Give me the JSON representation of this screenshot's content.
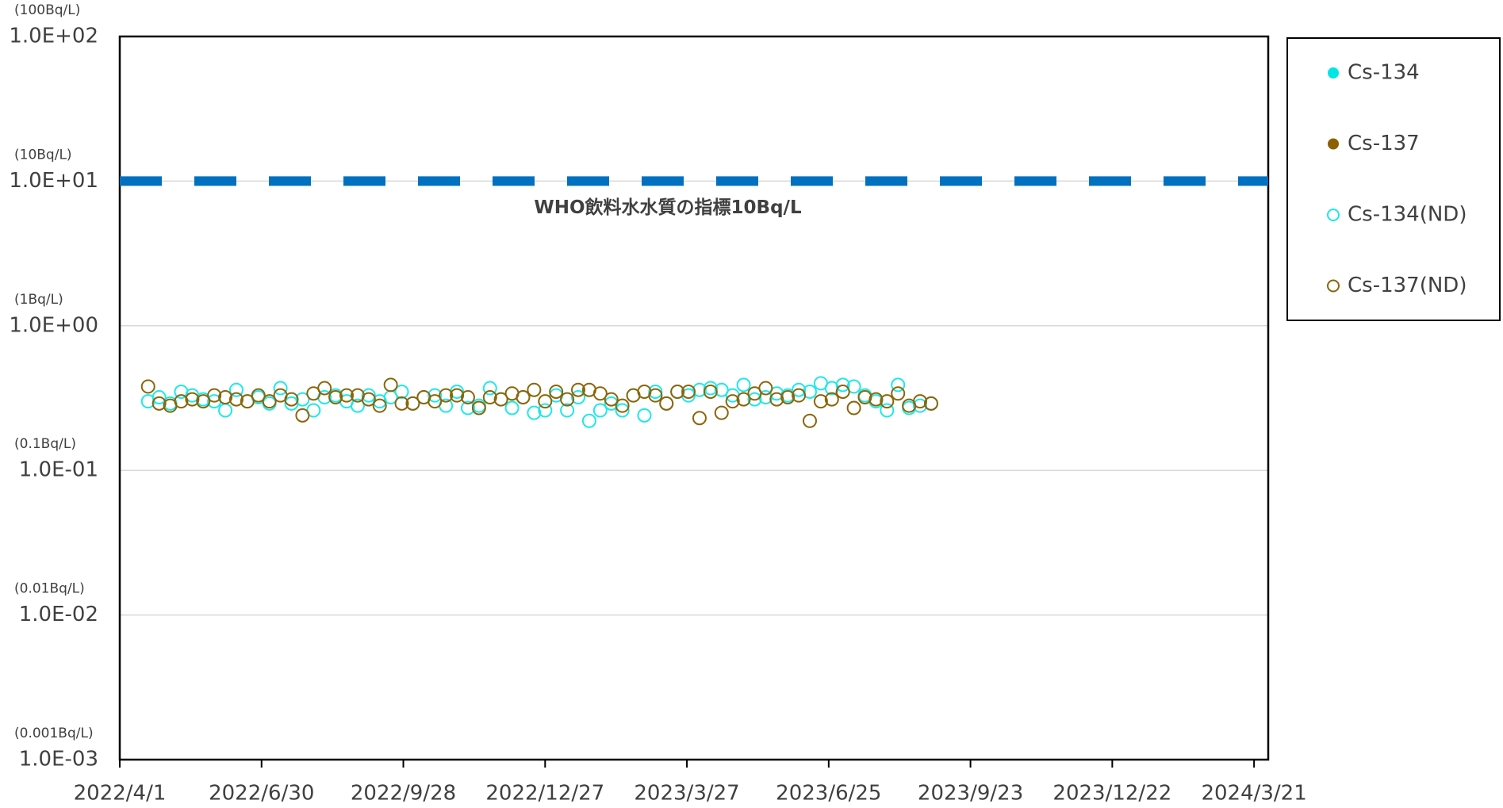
{
  "chart_data": {
    "type": "scatter",
    "log_y": true,
    "grid": true,
    "legend": "right",
    "xlim": [
      "2022/4/1",
      "2024/3/30"
    ],
    "xticks": [
      "2022/4/1",
      "2022/6/30",
      "2022/9/28",
      "2022/12/27",
      "2023/3/27",
      "2023/6/25",
      "2023/9/23",
      "2023/12/22",
      "2024/3/21"
    ],
    "ylim": [
      0.001,
      100
    ],
    "yticks": [
      {
        "value": 0.001,
        "label": "1.0E-03"
      },
      {
        "value": 0.01,
        "label": "1.0E-02"
      },
      {
        "value": 0.1,
        "label": "1.0E-01"
      },
      {
        "value": 1,
        "label": "1.0E+00"
      },
      {
        "value": 10,
        "label": "1.0E+01"
      },
      {
        "value": 100,
        "label": "1.0E+02"
      }
    ],
    "ytick_units": [
      "(0.001Bq/L)",
      "(0.01Bq/L)",
      "(0.1Bq/L)",
      "(1Bq/L)",
      "(10Bq/L)",
      "(100Bq/L)"
    ],
    "reference_line": {
      "value": 10,
      "label": "WHO飲料水水質の指標10Bq/L",
      "color": "#0070c0"
    },
    "x": [
      "2022/4/19",
      "2022/4/26",
      "2022/5/3",
      "2022/5/10",
      "2022/5/17",
      "2022/5/24",
      "2022/5/31",
      "2022/6/7",
      "2022/6/14",
      "2022/6/21",
      "2022/6/28",
      "2022/7/5",
      "2022/7/12",
      "2022/7/19",
      "2022/7/26",
      "2022/8/2",
      "2022/8/9",
      "2022/8/16",
      "2022/8/23",
      "2022/8/30",
      "2022/9/6",
      "2022/9/13",
      "2022/9/20",
      "2022/9/27",
      "2022/10/4",
      "2022/10/11",
      "2022/10/18",
      "2022/10/25",
      "2022/11/1",
      "2022/11/8",
      "2022/11/15",
      "2022/11/22",
      "2022/11/29",
      "2022/12/6",
      "2022/12/13",
      "2022/12/20",
      "2022/12/27",
      "2023/1/3",
      "2023/1/10",
      "2023/1/17",
      "2023/1/24",
      "2023/1/31",
      "2023/2/7",
      "2023/2/14",
      "2023/2/21",
      "2023/2/28",
      "2023/3/7",
      "2023/3/14",
      "2023/3/21",
      "2023/3/28",
      "2023/4/4",
      "2023/4/11",
      "2023/4/18",
      "2023/4/25",
      "2023/5/2",
      "2023/5/9",
      "2023/5/16",
      "2023/5/23",
      "2023/5/30",
      "2023/6/6",
      "2023/6/13",
      "2023/6/20",
      "2023/6/27",
      "2023/7/4",
      "2023/7/11",
      "2023/7/18",
      "2023/7/25",
      "2023/8/1",
      "2023/8/8",
      "2023/8/15",
      "2023/8/22",
      "2023/8/29"
    ],
    "series": [
      {
        "name": "Cs-134",
        "color": "#00e5e5",
        "marker": "filled",
        "x": [],
        "values": []
      },
      {
        "name": "Cs-137",
        "color": "#8b6000",
        "marker": "filled",
        "x": [],
        "values": []
      },
      {
        "name": "Cs-134(ND)",
        "color": "#1ee8e8",
        "marker": "hollow",
        "values": [
          0.3,
          0.32,
          0.29,
          0.35,
          0.33,
          0.31,
          0.3,
          0.26,
          0.36,
          0.3,
          0.32,
          0.29,
          0.37,
          0.29,
          0.31,
          0.26,
          0.32,
          0.33,
          0.3,
          0.28,
          0.33,
          0.3,
          0.32,
          0.35,
          0.29,
          0.32,
          0.33,
          0.28,
          0.35,
          0.27,
          0.28,
          0.37,
          0.31,
          0.27,
          0.32,
          0.25,
          0.26,
          0.33,
          0.26,
          0.32,
          0.22,
          0.26,
          0.29,
          0.26,
          0.33,
          0.24,
          0.35,
          0.29,
          0.35,
          0.33,
          0.36,
          0.37,
          0.36,
          0.33,
          0.39,
          0.31,
          0.32,
          0.34,
          0.33,
          0.36,
          0.35,
          0.4,
          0.37,
          0.39,
          0.38,
          0.33,
          0.3,
          0.26,
          0.39,
          0.27,
          0.28,
          0.29
        ]
      },
      {
        "name": "Cs-137(ND)",
        "color": "#8b6508",
        "marker": "hollow",
        "values": [
          0.38,
          0.29,
          0.28,
          0.3,
          0.31,
          0.3,
          0.33,
          0.32,
          0.31,
          0.3,
          0.33,
          0.3,
          0.33,
          0.31,
          0.24,
          0.34,
          0.37,
          0.32,
          0.33,
          0.33,
          0.31,
          0.28,
          0.39,
          0.29,
          0.29,
          0.32,
          0.3,
          0.33,
          0.33,
          0.32,
          0.27,
          0.32,
          0.31,
          0.34,
          0.32,
          0.36,
          0.3,
          0.35,
          0.31,
          0.36,
          0.36,
          0.34,
          0.31,
          0.28,
          0.33,
          0.35,
          0.33,
          0.29,
          0.35,
          0.35,
          0.23,
          0.35,
          0.25,
          0.3,
          0.31,
          0.34,
          0.37,
          0.31,
          0.32,
          0.33,
          0.22,
          0.3,
          0.31,
          0.35,
          0.27,
          0.32,
          0.31,
          0.3,
          0.34,
          0.28,
          0.3,
          0.29
        ]
      }
    ]
  }
}
